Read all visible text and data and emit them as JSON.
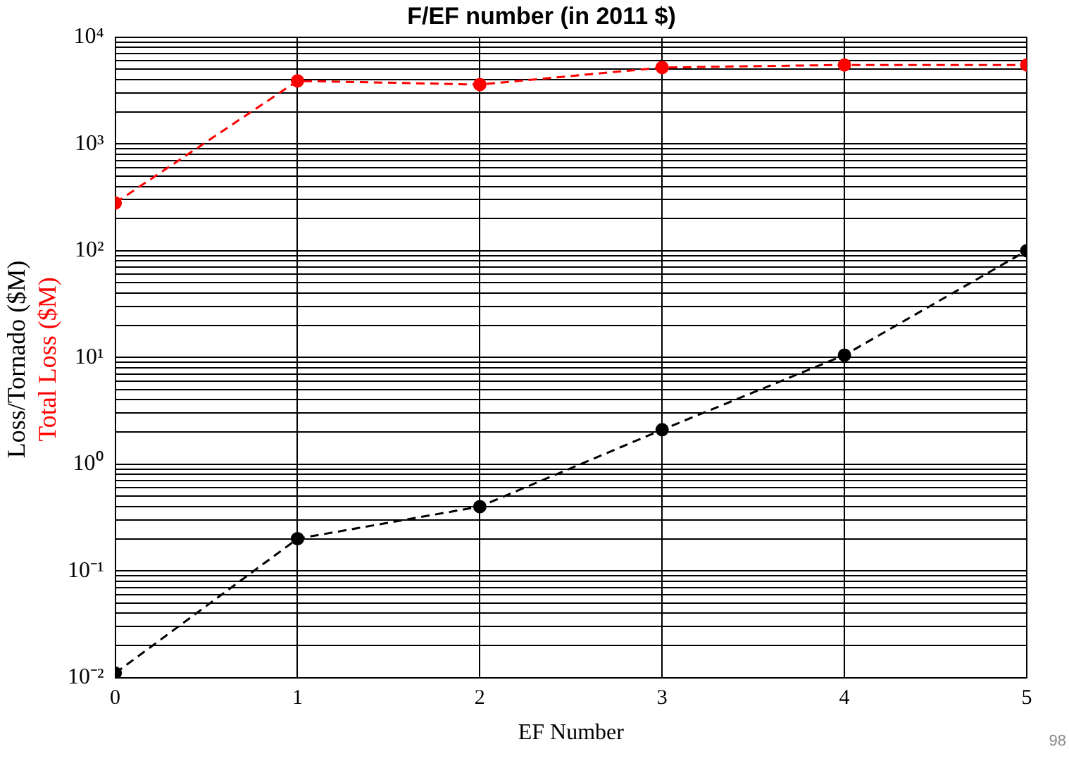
{
  "chart_data": {
    "type": "line",
    "title": "F/EF number (in 2011 $)",
    "xlabel": "EF Number",
    "x": [
      0,
      1,
      2,
      3,
      4,
      5
    ],
    "series": [
      {
        "name": "Loss/Tornado ($M)",
        "color": "#000000",
        "values": [
          0.011,
          0.2,
          0.4,
          2.1,
          10.5,
          100
        ]
      },
      {
        "name": "Total Loss ($M)",
        "color": "#ff0000",
        "values": [
          280,
          3900,
          3600,
          5200,
          5500,
          5500
        ]
      }
    ],
    "log": "y",
    "xlim": [
      0,
      5
    ],
    "xticks": [
      0,
      1,
      2,
      3,
      4,
      5
    ],
    "ylim": [
      0.01,
      10000
    ],
    "yticks": [
      {
        "value": 0.01,
        "label": "10⁻²"
      },
      {
        "value": 0.02,
        "label": null
      },
      {
        "value": 0.03,
        "label": null
      },
      {
        "value": 0.04,
        "label": null
      },
      {
        "value": 0.05,
        "label": null
      },
      {
        "value": 0.06,
        "label": null
      },
      {
        "value": 0.07,
        "label": null
      },
      {
        "value": 0.08,
        "label": null
      },
      {
        "value": 0.09,
        "label": null
      },
      {
        "value": 0.1,
        "label": "10⁻¹"
      },
      {
        "value": 0.2,
        "label": null
      },
      {
        "value": 0.3,
        "label": null
      },
      {
        "value": 0.4,
        "label": null
      },
      {
        "value": 0.5,
        "label": null
      },
      {
        "value": 0.6,
        "label": null
      },
      {
        "value": 0.7,
        "label": null
      },
      {
        "value": 0.8,
        "label": null
      },
      {
        "value": 0.9,
        "label": null
      },
      {
        "value": 1,
        "label": "10⁰"
      },
      {
        "value": 2,
        "label": null
      },
      {
        "value": 3,
        "label": null
      },
      {
        "value": 4,
        "label": null
      },
      {
        "value": 5,
        "label": null
      },
      {
        "value": 6,
        "label": null
      },
      {
        "value": 7,
        "label": null
      },
      {
        "value": 8,
        "label": null
      },
      {
        "value": 9,
        "label": null
      },
      {
        "value": 10,
        "label": "10¹"
      },
      {
        "value": 20,
        "label": null
      },
      {
        "value": 30,
        "label": null
      },
      {
        "value": 40,
        "label": null
      },
      {
        "value": 50,
        "label": null
      },
      {
        "value": 60,
        "label": null
      },
      {
        "value": 70,
        "label": null
      },
      {
        "value": 80,
        "label": null
      },
      {
        "value": 90,
        "label": null
      },
      {
        "value": 100,
        "label": "10²"
      },
      {
        "value": 200,
        "label": null
      },
      {
        "value": 300,
        "label": null
      },
      {
        "value": 400,
        "label": null
      },
      {
        "value": 500,
        "label": null
      },
      {
        "value": 600,
        "label": null
      },
      {
        "value": 700,
        "label": null
      },
      {
        "value": 800,
        "label": null
      },
      {
        "value": 900,
        "label": null
      },
      {
        "value": 1000,
        "label": "10³"
      },
      {
        "value": 2000,
        "label": null
      },
      {
        "value": 3000,
        "label": null
      },
      {
        "value": 4000,
        "label": null
      },
      {
        "value": 5000,
        "label": null
      },
      {
        "value": 6000,
        "label": null
      },
      {
        "value": 7000,
        "label": null
      },
      {
        "value": 8000,
        "label": null
      },
      {
        "value": 9000,
        "label": null
      },
      {
        "value": 10000,
        "label": "10⁴"
      }
    ],
    "grid": true,
    "legend": false,
    "marker": "circle",
    "line_style": "dashed",
    "annotations": [
      "98"
    ]
  }
}
